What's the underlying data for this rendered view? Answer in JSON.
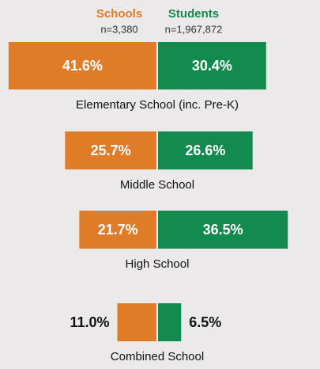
{
  "chart_data": {
    "type": "diverging_bar",
    "categories": [
      "Elementary School (inc. Pre-K)",
      "Middle School",
      "High School",
      "Combined School"
    ],
    "series": [
      {
        "name": "Schools",
        "note": "n=3,380",
        "color": "#e07b28",
        "values": [
          41.6,
          25.7,
          21.7,
          11.0
        ],
        "value_labels": [
          "41.6%",
          "25.7%",
          "21.7%",
          "11.0%"
        ]
      },
      {
        "name": "Students",
        "note": "n=1,967,872",
        "color": "#138a4e",
        "values": [
          30.4,
          26.6,
          36.5,
          6.5
        ],
        "value_labels": [
          "30.4%",
          "26.6%",
          "36.5%",
          "6.5%"
        ]
      }
    ]
  }
}
